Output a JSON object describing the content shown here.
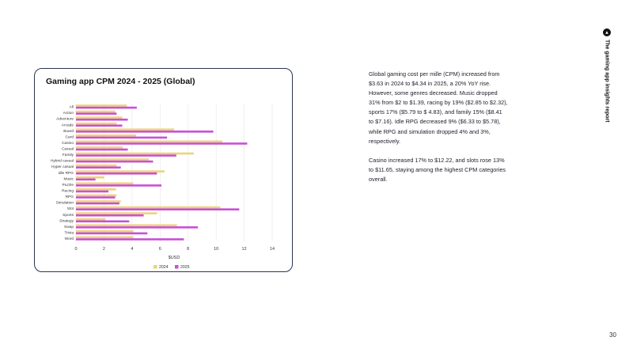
{
  "report": {
    "title": "The gaming app insights report",
    "page_number": "30"
  },
  "body": {
    "paragraph1": "Global gaming cost per mille (CPM) increased from $3.63 in 2024 to $4.34 in 2025, a 20% YoY rise. However, some genres decreased. Music dropped 31% from $2 to $1.39, racing by 19% ($2.85 to $2.32), sports 17% ($5.79 to $ 4.83), and family 15% ($8.41 to $7.16). Idle RPG decreased 9% ($6.33 to $5.78), while RPG and simulation dropped 4% and 3%, respectively.",
    "paragraph2": "Casino increased 17% to $12.22, and slots rose 13% to $11.65, staying among the highest CPM categories overall."
  },
  "colors": {
    "series_2024": "#ecd378",
    "series_2025": "#c94fd6",
    "card_border": "#2a3550",
    "grid": "#e4e4e4"
  },
  "chart_data": {
    "type": "bar",
    "orientation": "horizontal",
    "title": "Gaming app CPM 2024 - 2025 (Global)",
    "xlabel": "$USD",
    "ylabel": "",
    "xlim": [
      0,
      14
    ],
    "xticks": [
      "0",
      "2",
      "4",
      "6",
      "8",
      "10",
      "12",
      "14"
    ],
    "grid": true,
    "legend_position": "bottom",
    "categories": [
      "All",
      "Action",
      "Adventure",
      "Arcade",
      "Board",
      "Card",
      "Casino",
      "Casual",
      "Family",
      "Hybrid casual",
      "Hyper casual",
      "Idle RPG",
      "Music",
      "Puzzle",
      "Racing",
      "RPG",
      "Simulation",
      "Slot",
      "Sports",
      "Strategy",
      "Swap",
      "Trivia",
      "Word"
    ],
    "series": [
      {
        "name": "2024",
        "values": [
          3.63,
          2.8,
          3.3,
          2.9,
          7.0,
          4.3,
          10.45,
          3.35,
          8.41,
          5.2,
          2.9,
          6.33,
          2.0,
          4.1,
          2.85,
          2.9,
          3.2,
          10.3,
          5.79,
          2.1,
          7.2,
          4.1,
          4.1
        ]
      },
      {
        "name": "2025",
        "values": [
          4.34,
          2.9,
          3.7,
          3.3,
          9.8,
          6.5,
          12.22,
          3.7,
          7.16,
          5.5,
          3.2,
          5.78,
          1.39,
          6.1,
          2.32,
          2.8,
          3.1,
          11.65,
          4.83,
          3.8,
          8.7,
          5.1,
          7.7
        ]
      }
    ]
  }
}
